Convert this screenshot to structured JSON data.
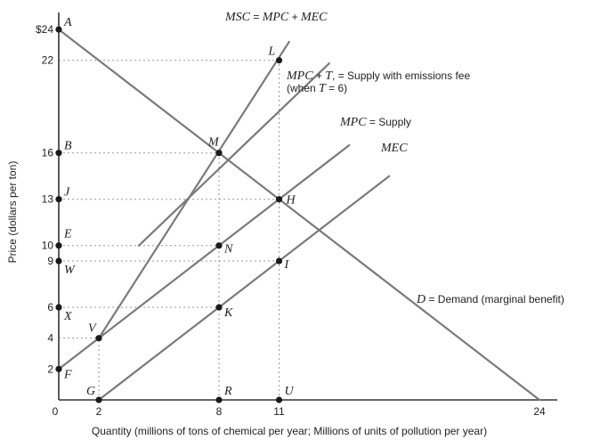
{
  "chart_data": {
    "type": "line",
    "xlabel": "Quantity (millions of tons of chemical per year; Millions of units of pollution per year)",
    "ylabel": "Price (dollars per ton)",
    "xlim": [
      0,
      24
    ],
    "ylim": [
      0,
      24
    ],
    "x_ticks": [
      {
        "value": 0,
        "label": "0"
      },
      {
        "value": 2,
        "label": "2"
      },
      {
        "value": 8,
        "label": "8"
      },
      {
        "value": 11,
        "label": "11"
      },
      {
        "value": 24,
        "label": "24"
      }
    ],
    "y_ticks": [
      {
        "value": 24,
        "label": "$24"
      },
      {
        "value": 22,
        "label": "22"
      },
      {
        "value": 16,
        "label": "16"
      },
      {
        "value": 13,
        "label": "13"
      },
      {
        "value": 10,
        "label": "10"
      },
      {
        "value": 9,
        "label": "9"
      },
      {
        "value": 6,
        "label": "6"
      },
      {
        "value": 4,
        "label": "4"
      },
      {
        "value": 2,
        "label": "2"
      }
    ],
    "series": [
      {
        "key": "demand",
        "label_parts": [
          {
            "t": "D",
            "it": true
          },
          {
            "t": " = Demand (marginal benefit)",
            "it": false
          }
        ],
        "x": [
          0,
          24
        ],
        "y": [
          24,
          0
        ]
      },
      {
        "key": "msc",
        "label_parts": [
          {
            "t": "MSC",
            "it": true
          },
          {
            "t": " = ",
            "it": false
          },
          {
            "t": "MPC",
            "it": true
          },
          {
            "t": " + ",
            "it": false
          },
          {
            "t": "MEC",
            "it": true
          }
        ],
        "x": [
          2,
          11.5
        ],
        "y": [
          4,
          23.2
        ]
      },
      {
        "key": "mpc_t",
        "label_parts": [
          {
            "t": "MPC",
            "it": true
          },
          {
            "t": " + ",
            "it": false
          },
          {
            "t": "T",
            "it": true
          },
          {
            "t": ", = Supply with emissions fee",
            "it": false
          }
        ],
        "label_line2": "(when T = 6)",
        "x": [
          4,
          13.5
        ],
        "y": [
          10,
          21.8
        ]
      },
      {
        "key": "mpc",
        "label_parts": [
          {
            "t": "MPC",
            "it": true
          },
          {
            "t": " = Supply",
            "it": false
          }
        ],
        "x": [
          0,
          14.5
        ],
        "y": [
          2,
          16.5
        ]
      },
      {
        "key": "mec",
        "label_parts": [
          {
            "t": "MEC",
            "it": true
          }
        ],
        "x": [
          2,
          16.5
        ],
        "y": [
          0,
          14.5
        ]
      }
    ],
    "points": [
      {
        "label": "A",
        "x": 0,
        "y": 24
      },
      {
        "label": "B",
        "x": 0,
        "y": 16
      },
      {
        "label": "J",
        "x": 0,
        "y": 13
      },
      {
        "label": "E",
        "x": 0,
        "y": 10
      },
      {
        "label": "W",
        "x": 0,
        "y": 9
      },
      {
        "label": "X",
        "x": 0,
        "y": 6
      },
      {
        "label": "F",
        "x": 0,
        "y": 2
      },
      {
        "label": "G",
        "x": 2,
        "y": 0
      },
      {
        "label": "V",
        "x": 2,
        "y": 4
      },
      {
        "label": "L",
        "x": 11,
        "y": 22
      },
      {
        "label": "M",
        "x": 8,
        "y": 16
      },
      {
        "label": "H",
        "x": 11,
        "y": 13
      },
      {
        "label": "N",
        "x": 8,
        "y": 10
      },
      {
        "label": "I",
        "x": 11,
        "y": 9
      },
      {
        "label": "K",
        "x": 8,
        "y": 6
      },
      {
        "label": "R",
        "x": 8,
        "y": 0
      },
      {
        "label": "U",
        "x": 11,
        "y": 0
      }
    ],
    "guides": [
      {
        "x1": 0,
        "y1": 22,
        "x2": 11,
        "y2": 22
      },
      {
        "x1": 0,
        "y1": 16,
        "x2": 8,
        "y2": 16
      },
      {
        "x1": 0,
        "y1": 13,
        "x2": 11,
        "y2": 13
      },
      {
        "x1": 0,
        "y1": 10,
        "x2": 8,
        "y2": 10
      },
      {
        "x1": 0,
        "y1": 9,
        "x2": 11,
        "y2": 9
      },
      {
        "x1": 0,
        "y1": 6,
        "x2": 8,
        "y2": 6
      },
      {
        "x1": 0,
        "y1": 4,
        "x2": 2,
        "y2": 4
      },
      {
        "x1": 2,
        "y1": 0,
        "x2": 2,
        "y2": 4
      },
      {
        "x1": 8,
        "y1": 0,
        "x2": 8,
        "y2": 16
      },
      {
        "x1": 11,
        "y1": 0,
        "x2": 11,
        "y2": 22
      }
    ],
    "grid": false,
    "legend": "none"
  }
}
